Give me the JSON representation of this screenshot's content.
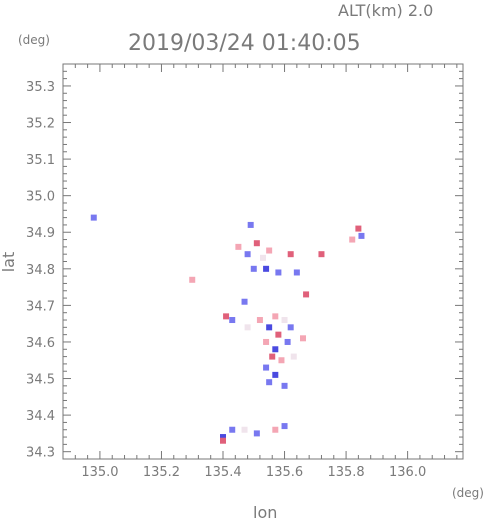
{
  "header": {
    "alt_label": "ALT(km) 2.0",
    "datetime": "2019/03/24 01:40:05"
  },
  "chart_data": {
    "type": "scatter",
    "xlabel": "lon",
    "ylabel": "lat",
    "x_unit": "(deg)",
    "y_unit": "(deg)",
    "xlim": [
      134.88,
      136.18
    ],
    "ylim": [
      34.28,
      35.36
    ],
    "x_ticks": [
      135.0,
      135.2,
      135.4,
      135.6,
      135.8,
      136.0
    ],
    "x_tick_labels": [
      "135.0",
      "135.2",
      "135.4",
      "135.6",
      "135.8",
      "136.0"
    ],
    "y_ticks": [
      34.3,
      34.4,
      34.5,
      34.6,
      34.7,
      34.8,
      34.9,
      35.0,
      35.1,
      35.2,
      35.3
    ],
    "y_tick_labels": [
      "34.3",
      "34.4",
      "34.5",
      "34.6",
      "34.7",
      "34.8",
      "34.9",
      "35.0",
      "35.1",
      "35.2",
      "35.3"
    ],
    "minor_ticks_per_interval": 5,
    "grid": false,
    "colors": {
      "frame": "#777777",
      "positive": "#f4a6b4",
      "negative": "#7878f0",
      "strong_positive": "#e0607a",
      "strong_negative": "#4a4ae0",
      "near_zero": "#f0e4ec"
    },
    "series": [
      {
        "points": [
          [
            134.98,
            34.94,
            "negative"
          ],
          [
            135.3,
            34.77,
            "positive"
          ],
          [
            135.49,
            34.92,
            "negative"
          ],
          [
            135.45,
            34.86,
            "positive"
          ],
          [
            135.48,
            34.84,
            "negative"
          ],
          [
            135.51,
            34.87,
            "strong_positive"
          ],
          [
            135.53,
            34.83,
            "near_zero"
          ],
          [
            135.55,
            34.85,
            "positive"
          ],
          [
            135.5,
            34.8,
            "negative"
          ],
          [
            135.54,
            34.8,
            "strong_negative"
          ],
          [
            135.58,
            34.79,
            "negative"
          ],
          [
            135.62,
            34.84,
            "strong_positive"
          ],
          [
            135.64,
            34.79,
            "negative"
          ],
          [
            135.72,
            34.84,
            "strong_positive"
          ],
          [
            135.84,
            34.91,
            "strong_positive"
          ],
          [
            135.85,
            34.89,
            "negative"
          ],
          [
            135.82,
            34.88,
            "positive"
          ],
          [
            135.47,
            34.71,
            "negative"
          ],
          [
            135.41,
            34.67,
            "strong_positive"
          ],
          [
            135.43,
            34.66,
            "negative"
          ],
          [
            135.48,
            34.64,
            "near_zero"
          ],
          [
            135.52,
            34.66,
            "positive"
          ],
          [
            135.55,
            34.64,
            "strong_negative"
          ],
          [
            135.57,
            34.67,
            "positive"
          ],
          [
            135.6,
            34.66,
            "near_zero"
          ],
          [
            135.62,
            34.64,
            "negative"
          ],
          [
            135.58,
            34.62,
            "strong_positive"
          ],
          [
            135.54,
            34.6,
            "positive"
          ],
          [
            135.57,
            34.58,
            "strong_negative"
          ],
          [
            135.61,
            34.6,
            "negative"
          ],
          [
            135.56,
            34.56,
            "strong_positive"
          ],
          [
            135.59,
            34.55,
            "positive"
          ],
          [
            135.63,
            34.56,
            "near_zero"
          ],
          [
            135.54,
            34.53,
            "negative"
          ],
          [
            135.57,
            34.51,
            "strong_negative"
          ],
          [
            135.55,
            34.49,
            "negative"
          ],
          [
            135.6,
            34.48,
            "negative"
          ],
          [
            135.66,
            34.61,
            "positive"
          ],
          [
            135.67,
            34.73,
            "strong_positive"
          ],
          [
            135.4,
            34.34,
            "strong_negative"
          ],
          [
            135.43,
            34.36,
            "negative"
          ],
          [
            135.47,
            34.36,
            "near_zero"
          ],
          [
            135.51,
            34.35,
            "negative"
          ],
          [
            135.4,
            34.33,
            "strong_positive"
          ],
          [
            135.6,
            34.37,
            "negative"
          ],
          [
            135.57,
            34.36,
            "positive"
          ]
        ]
      }
    ]
  }
}
